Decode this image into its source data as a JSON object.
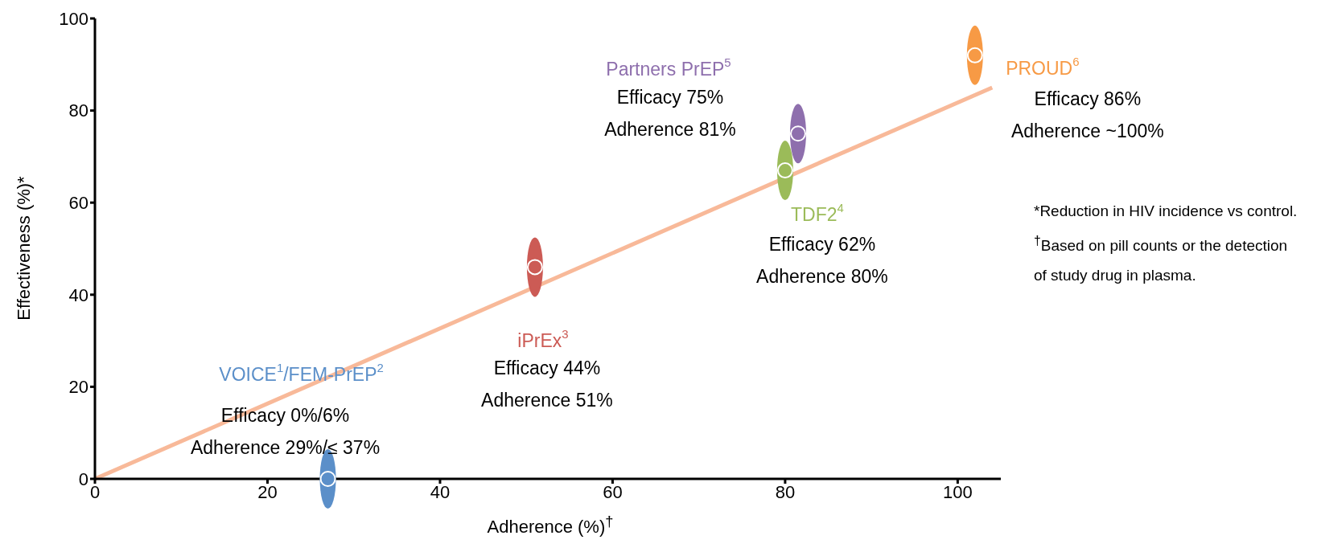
{
  "chart_data": {
    "type": "scatter",
    "xlabel": "Adherence (%)$^{†}$",
    "ylabel": "Effectiveness (%)*",
    "xlim": [
      0,
      105
    ],
    "ylim": [
      0,
      100
    ],
    "xticks": [
      0,
      20,
      40,
      60,
      80,
      100
    ],
    "yticks": [
      0,
      20,
      40,
      60,
      80,
      100
    ],
    "series": [
      {
        "name": "VOICE$^{1}$/FEM-PrEP$^{2}$",
        "color": "#5b8fc9",
        "x": [
          27
        ],
        "values": [
          0
        ]
      },
      {
        "name": "iPrEx$^{3}$",
        "color": "#cc5b55",
        "x": [
          51
        ],
        "values": [
          46
        ]
      },
      {
        "name": "TDF2$^{4}$",
        "color": "#9bbb59",
        "x": [
          80
        ],
        "values": [
          67
        ]
      },
      {
        "name": "Partners PrEP$^{5}$",
        "color": "#8e6fad",
        "x": [
          81.5
        ],
        "values": [
          75
        ]
      },
      {
        "name": "PROUD$^{6}$",
        "color": "#f79a45",
        "x": [
          102
        ],
        "values": [
          92
        ]
      },
      {
        "type": "line",
        "color": "#f8b999",
        "x": [
          0,
          104
        ],
        "values": [
          0,
          85
        ]
      }
    ],
    "annotations": [
      "Efficacy 0%/6%\nAdherence 29%/≤ 37%",
      "Efficacy 44%\nAdherence 51%",
      "Efficacy 62%\nAdherence 80%",
      "Efficacy 75%\nAdherence 81%",
      "Efficacy 86%\nAdherence ~100%",
      "*Reduction in HIV incidence vs control.",
      "$^{†}$Based on pill counts or the detection of study drug in plasma."
    ]
  }
}
